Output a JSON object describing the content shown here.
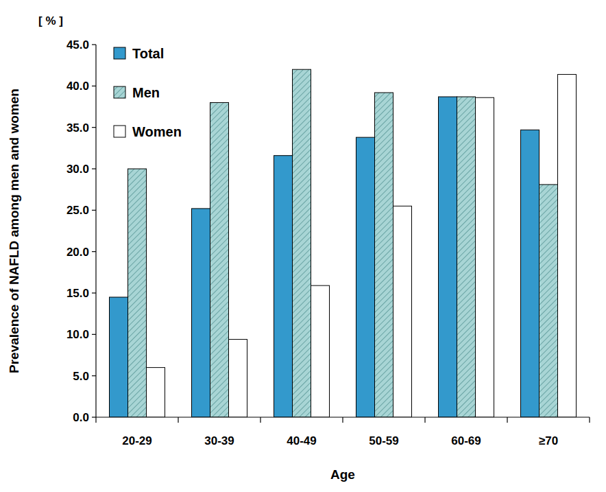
{
  "chart_data": {
    "type": "bar",
    "unit_label": "[ % ]",
    "y_label": "Prevalence of NAFLD among men and women",
    "x_label": "Age",
    "categories": [
      "20-29",
      "30-39",
      "40-49",
      "50-59",
      "60-69",
      "≥70"
    ],
    "series": [
      {
        "name": "Total",
        "color": "#3399cc",
        "values": [
          14.5,
          25.2,
          31.6,
          33.8,
          38.7,
          34.7
        ]
      },
      {
        "name": "Men",
        "color": "#a8d5d5",
        "values": [
          30.0,
          38.0,
          42.0,
          39.2,
          38.7,
          28.1
        ]
      },
      {
        "name": "Women",
        "color": "#ffffff",
        "values": [
          6.0,
          9.4,
          15.9,
          25.5,
          38.6,
          41.4
        ]
      }
    ],
    "ylim": [
      0,
      45
    ],
    "yticks": [
      {
        "value": 0,
        "label": "0.0"
      },
      {
        "value": 5,
        "label": "5.0"
      },
      {
        "value": 10,
        "label": "10.0"
      },
      {
        "value": 15,
        "label": "15.0"
      },
      {
        "value": 20,
        "label": "20.0"
      },
      {
        "value": 25,
        "label": "25.0"
      },
      {
        "value": 30,
        "label": "30.0"
      },
      {
        "value": 35,
        "label": "35.0"
      },
      {
        "value": 40,
        "label": "40.0"
      },
      {
        "value": 45,
        "label": "45.0"
      }
    ],
    "legend": "top-left",
    "grid": false
  }
}
